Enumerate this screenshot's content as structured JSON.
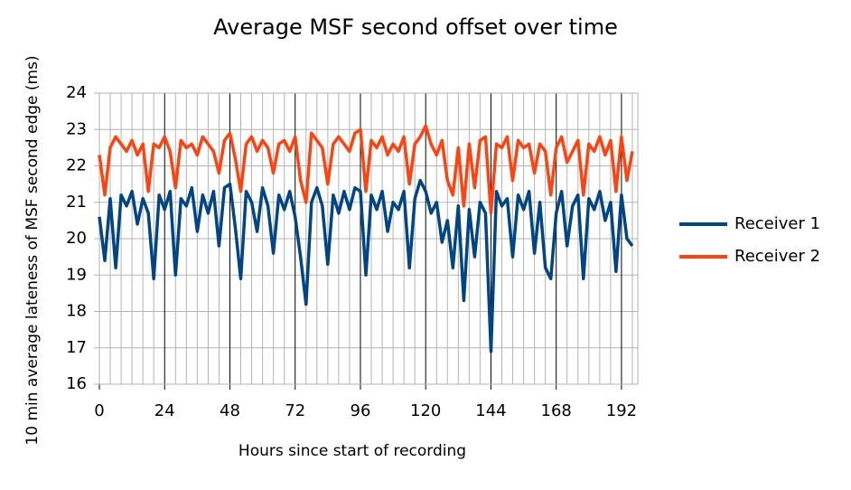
{
  "chart_data": {
    "type": "line",
    "title": "Average MSF second offset over time",
    "x_label": "Hours since start of recording",
    "y_label": "10 min average lateness of MSF second edge (ms)",
    "x": [
      0,
      2,
      4,
      6,
      8,
      10,
      12,
      14,
      16,
      18,
      20,
      22,
      24,
      26,
      28,
      30,
      32,
      34,
      36,
      38,
      40,
      42,
      44,
      46,
      48,
      50,
      52,
      54,
      56,
      58,
      60,
      62,
      64,
      66,
      68,
      70,
      72,
      74,
      76,
      78,
      80,
      82,
      84,
      86,
      88,
      90,
      92,
      94,
      96,
      98,
      100,
      102,
      104,
      106,
      108,
      110,
      112,
      114,
      116,
      118,
      120,
      122,
      124,
      126,
      128,
      130,
      132,
      134,
      136,
      138,
      140,
      142,
      144,
      146,
      148,
      150,
      152,
      154,
      156,
      158,
      160,
      162,
      164,
      166,
      168,
      170,
      172,
      174,
      176,
      178,
      180,
      182,
      184,
      186,
      188,
      190,
      192,
      194,
      196
    ],
    "series": [
      {
        "name": "Receiver 1",
        "color": "#004586",
        "values": [
          20.6,
          19.4,
          21.1,
          19.2,
          21.2,
          20.9,
          21.3,
          20.4,
          21.1,
          20.7,
          18.9,
          21.2,
          20.8,
          21.3,
          19.0,
          21.1,
          20.9,
          21.4,
          20.2,
          21.2,
          20.7,
          21.3,
          19.8,
          21.4,
          21.5,
          20.3,
          18.9,
          21.3,
          21.0,
          20.2,
          21.4,
          20.9,
          19.6,
          21.2,
          20.8,
          21.3,
          20.6,
          19.5,
          18.2,
          21.0,
          21.4,
          20.9,
          19.3,
          21.2,
          20.7,
          21.3,
          20.8,
          21.4,
          21.3,
          19.0,
          21.2,
          20.8,
          21.3,
          20.2,
          21.0,
          20.8,
          21.3,
          19.2,
          21.1,
          21.6,
          21.3,
          20.7,
          21.0,
          19.9,
          20.5,
          19.2,
          20.9,
          18.3,
          20.8,
          19.5,
          21.0,
          20.7,
          16.9,
          21.3,
          20.9,
          21.1,
          19.5,
          21.2,
          20.8,
          21.3,
          19.6,
          21.0,
          19.2,
          18.9,
          20.7,
          21.3,
          19.8,
          20.9,
          21.2,
          18.9,
          21.1,
          20.8,
          21.3,
          20.5,
          21.0,
          19.1,
          21.2,
          20.0,
          19.8
        ]
      },
      {
        "name": "Receiver 2",
        "color": "#ff420e",
        "values": [
          22.3,
          21.2,
          22.5,
          22.8,
          22.6,
          22.4,
          22.7,
          22.3,
          22.6,
          21.3,
          22.6,
          22.5,
          22.8,
          22.4,
          21.4,
          22.7,
          22.5,
          22.6,
          22.3,
          22.8,
          22.6,
          22.4,
          21.8,
          22.7,
          22.9,
          22.2,
          21.3,
          22.6,
          22.8,
          22.4,
          22.7,
          22.5,
          21.8,
          22.6,
          22.7,
          22.4,
          22.8,
          21.6,
          21.0,
          22.9,
          22.7,
          22.5,
          21.5,
          22.6,
          22.8,
          22.6,
          22.4,
          22.9,
          23.0,
          21.3,
          22.7,
          22.5,
          22.8,
          22.3,
          22.6,
          22.4,
          22.8,
          21.5,
          22.6,
          22.8,
          23.1,
          22.6,
          22.3,
          22.7,
          21.6,
          21.2,
          22.5,
          20.9,
          22.6,
          21.4,
          22.7,
          22.8,
          20.7,
          22.6,
          22.5,
          22.8,
          21.6,
          22.7,
          22.5,
          22.6,
          21.8,
          22.6,
          22.4,
          21.2,
          22.5,
          22.8,
          22.1,
          22.4,
          22.7,
          21.2,
          22.6,
          22.4,
          22.8,
          22.3,
          22.7,
          21.3,
          22.8,
          21.6,
          22.4
        ]
      }
    ],
    "xlim": [
      0,
      198
    ],
    "ylim": [
      16,
      24
    ],
    "xticks": [
      0,
      24,
      48,
      72,
      96,
      120,
      144,
      168,
      192
    ],
    "xminorticks": [
      4,
      8,
      12,
      16,
      20,
      28,
      32,
      36,
      40,
      44,
      52,
      56,
      60,
      64,
      68,
      76,
      80,
      84,
      88,
      92,
      100,
      104,
      108,
      112,
      116,
      124,
      128,
      132,
      136,
      140,
      148,
      152,
      156,
      160,
      164,
      172,
      176,
      180,
      184,
      188,
      196
    ],
    "yticks": [
      16,
      17,
      18,
      19,
      20,
      21,
      22,
      23,
      24
    ],
    "grid": true,
    "legend": "right"
  }
}
